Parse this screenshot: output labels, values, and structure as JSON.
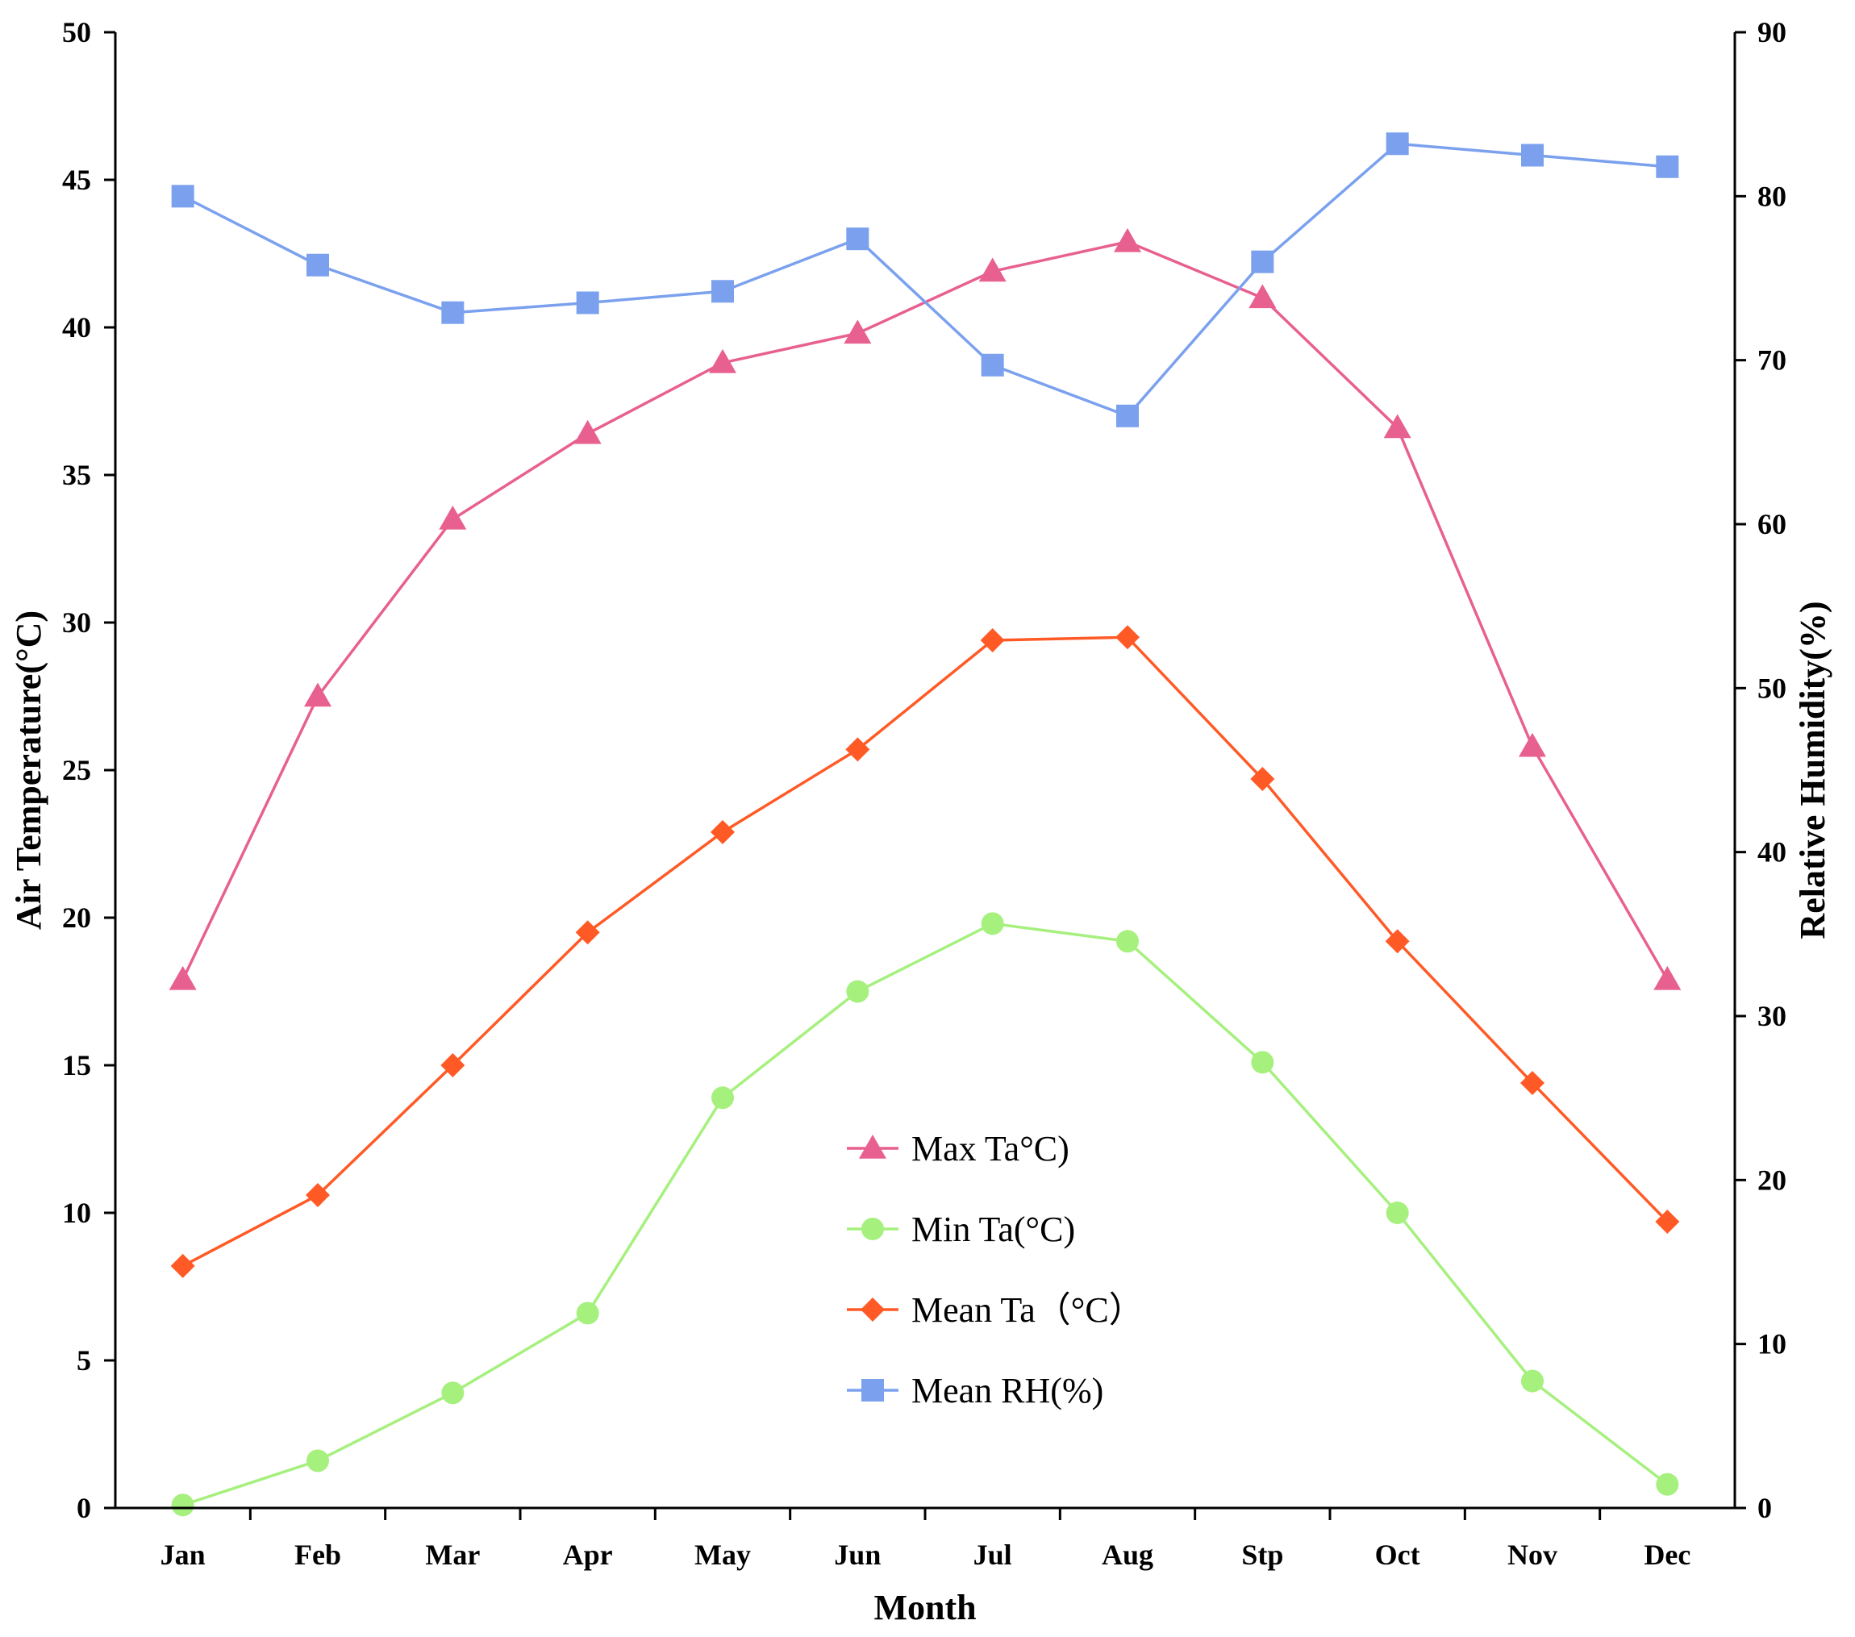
{
  "chart_data": {
    "type": "line",
    "categories": [
      "Jan",
      "Feb",
      "Mar",
      "Apr",
      "May",
      "Jun",
      "Jul",
      "Aug",
      "Stp",
      "Oct",
      "Nov",
      "Dec"
    ],
    "xlabel": "Month",
    "ylabel": "Air Temperature(°C)",
    "y2label": "Relative Humidity(%)",
    "ylim": [
      0,
      50
    ],
    "y2lim": [
      0,
      90
    ],
    "yticks": [
      0,
      5,
      10,
      15,
      20,
      25,
      30,
      35,
      40,
      45,
      50
    ],
    "y2ticks": [
      0,
      10,
      20,
      30,
      40,
      50,
      60,
      70,
      80,
      90
    ],
    "legend_position": "center-bottom",
    "series": [
      {
        "id": "max-ta",
        "name": "Max Ta°C)",
        "axis": "left",
        "color": "#E8608F",
        "marker": "triangle",
        "values": [
          17.9,
          27.5,
          33.5,
          36.4,
          38.8,
          39.8,
          41.9,
          42.9,
          41.0,
          36.6,
          25.8,
          17.9
        ]
      },
      {
        "id": "min-ta",
        "name": "Min Ta(°C)",
        "axis": "left",
        "color": "#A6F07E",
        "marker": "circle",
        "values": [
          0.1,
          1.6,
          3.9,
          6.6,
          13.9,
          17.5,
          19.8,
          19.2,
          15.1,
          10.0,
          4.3,
          0.8
        ]
      },
      {
        "id": "mean-ta",
        "name": "Mean Ta（°C）",
        "axis": "left",
        "color": "#FF5A26",
        "marker": "diamond",
        "values": [
          8.2,
          10.6,
          15.0,
          19.5,
          22.9,
          25.7,
          29.4,
          29.5,
          24.7,
          19.2,
          14.4,
          9.7
        ]
      },
      {
        "id": "mean-rh",
        "name": "Mean RH(%)",
        "axis": "right",
        "color": "#7BA1EE",
        "marker": "square",
        "values": [
          80.0,
          75.8,
          72.9,
          73.5,
          74.2,
          77.4,
          69.7,
          66.6,
          76.0,
          83.2,
          82.5,
          81.8
        ]
      }
    ]
  }
}
